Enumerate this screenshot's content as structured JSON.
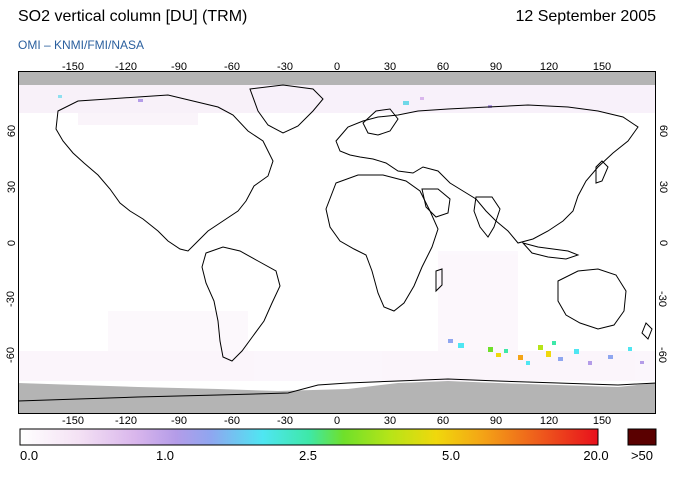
{
  "header": {
    "title": "SO2 vertical column [DU] (TRM)",
    "date": "12 September 2005",
    "credit": "OMI – KNMI/FMI/NASA"
  },
  "map": {
    "lon_ticks": [
      "-150",
      "-120",
      "-90",
      "-60",
      "-30",
      "0",
      "30",
      "60",
      "90",
      "120",
      "150"
    ],
    "lat_ticks": [
      "60",
      "30",
      "0",
      "-30",
      "-60"
    ],
    "background_color": "#ffffff",
    "no_data_color": "#b4b4b4",
    "coastline_color": "#000000"
  },
  "colorbar": {
    "labels": [
      "0.0",
      "1.0",
      "2.5",
      "5.0",
      "20.0"
    ],
    "overflow_label": ">50",
    "overflow_color": "#5a0000",
    "gradient": [
      "#ffffff",
      "#f4e2f4",
      "#d9b6ec",
      "#b49ce8",
      "#8fa6f0",
      "#4fe6f2",
      "#3ee8a8",
      "#6fe02a",
      "#b6e418",
      "#f0d80c",
      "#f4a416",
      "#ee5a1c",
      "#e8101c"
    ]
  }
}
